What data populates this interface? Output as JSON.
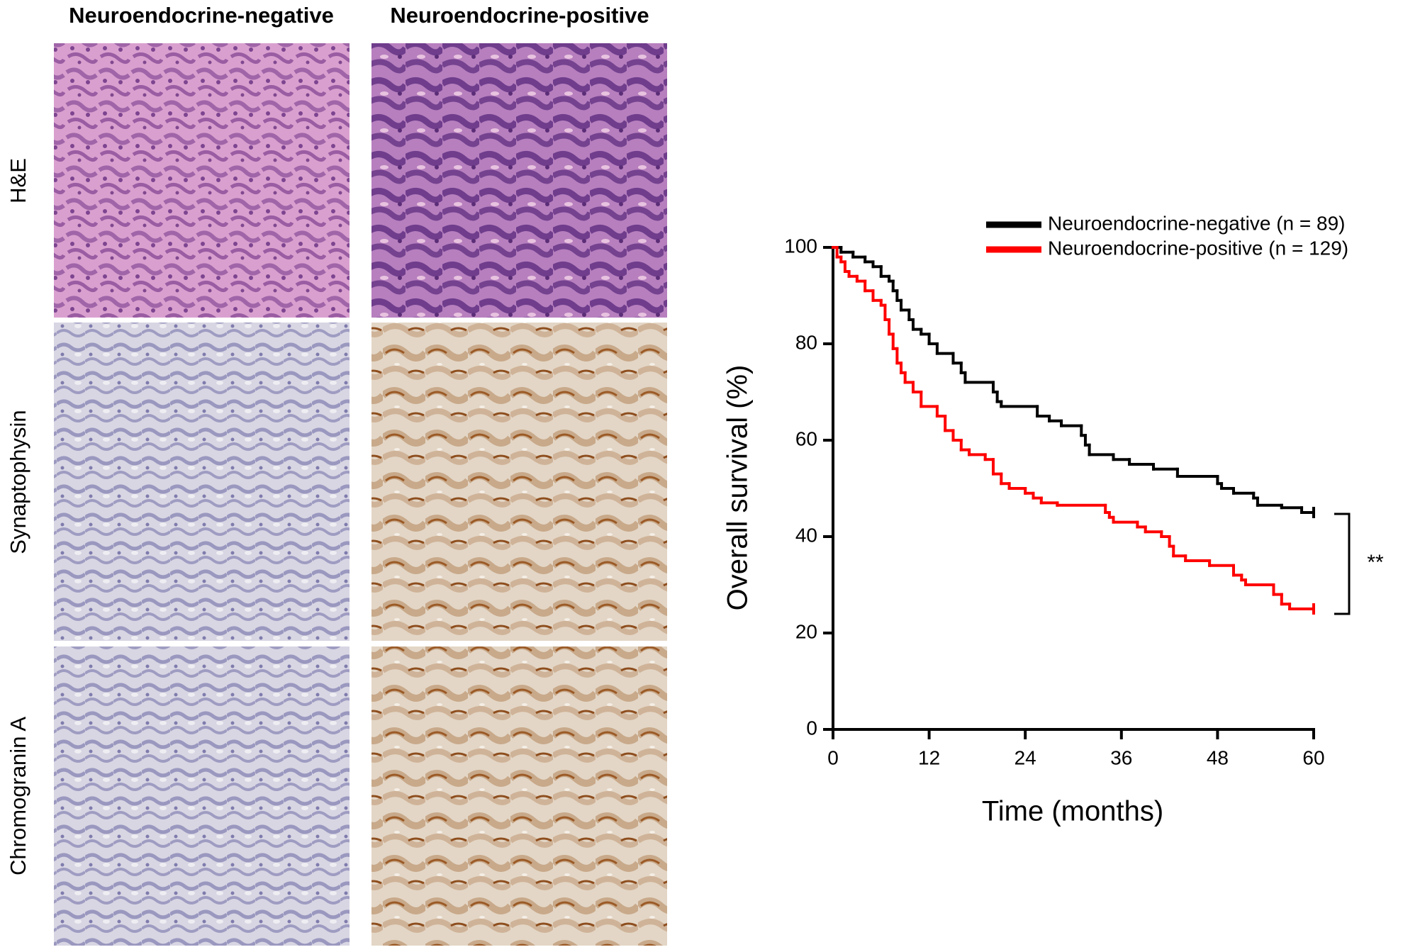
{
  "figure": {
    "columns": [
      "Neuroendocrine-negative",
      "Neuroendocrine-positive"
    ],
    "rows": [
      "H&E",
      "Synaptophysin",
      "Chromogranin A"
    ]
  },
  "chart_data": {
    "type": "step",
    "xlabel": "Time (months)",
    "ylabel": "Overall survival (%)",
    "xlim": [
      0,
      60
    ],
    "ylim": [
      0,
      100
    ],
    "xticks": [
      0,
      12,
      24,
      36,
      48,
      60
    ],
    "yticks": [
      0,
      20,
      40,
      60,
      80,
      100
    ],
    "annotation": "**",
    "series": [
      {
        "name": "Neuroendocrine-negative (n = 89)",
        "color": "#000000",
        "x": [
          0,
          1,
          2.5,
          4,
          5,
          6,
          7,
          7.5,
          8,
          8.5,
          9.5,
          10,
          11,
          12,
          13,
          15,
          16,
          16.5,
          20,
          20.5,
          21,
          25.5,
          27,
          28.5,
          31,
          31.5,
          32,
          35,
          37,
          40,
          43,
          48,
          48.5,
          50,
          52.5,
          53,
          56,
          58.5,
          60
        ],
        "values": [
          100,
          99,
          98,
          97,
          96,
          94,
          93,
          91,
          89,
          87,
          85,
          83,
          82,
          80,
          78,
          76,
          74,
          72,
          70,
          68,
          67,
          65,
          64,
          63,
          61,
          59,
          57,
          56,
          55,
          54,
          52.5,
          51,
          50,
          49,
          48,
          46.5,
          46,
          45,
          45
        ]
      },
      {
        "name": "Neuroendocrine-positive (n = 129)",
        "color": "#ff0000",
        "x": [
          0,
          0.5,
          1,
          1.5,
          2,
          3,
          4,
          5,
          6,
          6.5,
          7,
          7.5,
          8,
          8.5,
          9,
          10,
          11,
          13,
          14,
          15,
          16,
          17,
          19,
          20,
          21,
          22,
          24,
          25,
          26,
          28,
          34,
          34.5,
          35,
          38,
          39,
          41,
          42,
          42.5,
          44,
          47,
          50,
          51,
          51.5,
          55,
          56,
          57,
          60
        ],
        "values": [
          100,
          98,
          97,
          95,
          94,
          93,
          91,
          89,
          88,
          85,
          82,
          79,
          76,
          74,
          72,
          70,
          67,
          65,
          62,
          60,
          58,
          57,
          56,
          53,
          51,
          50,
          49,
          48,
          47,
          46.5,
          45,
          44,
          43,
          42,
          41,
          40,
          38,
          36,
          35,
          34,
          32,
          31,
          30,
          28,
          26,
          25,
          25
        ]
      }
    ]
  }
}
